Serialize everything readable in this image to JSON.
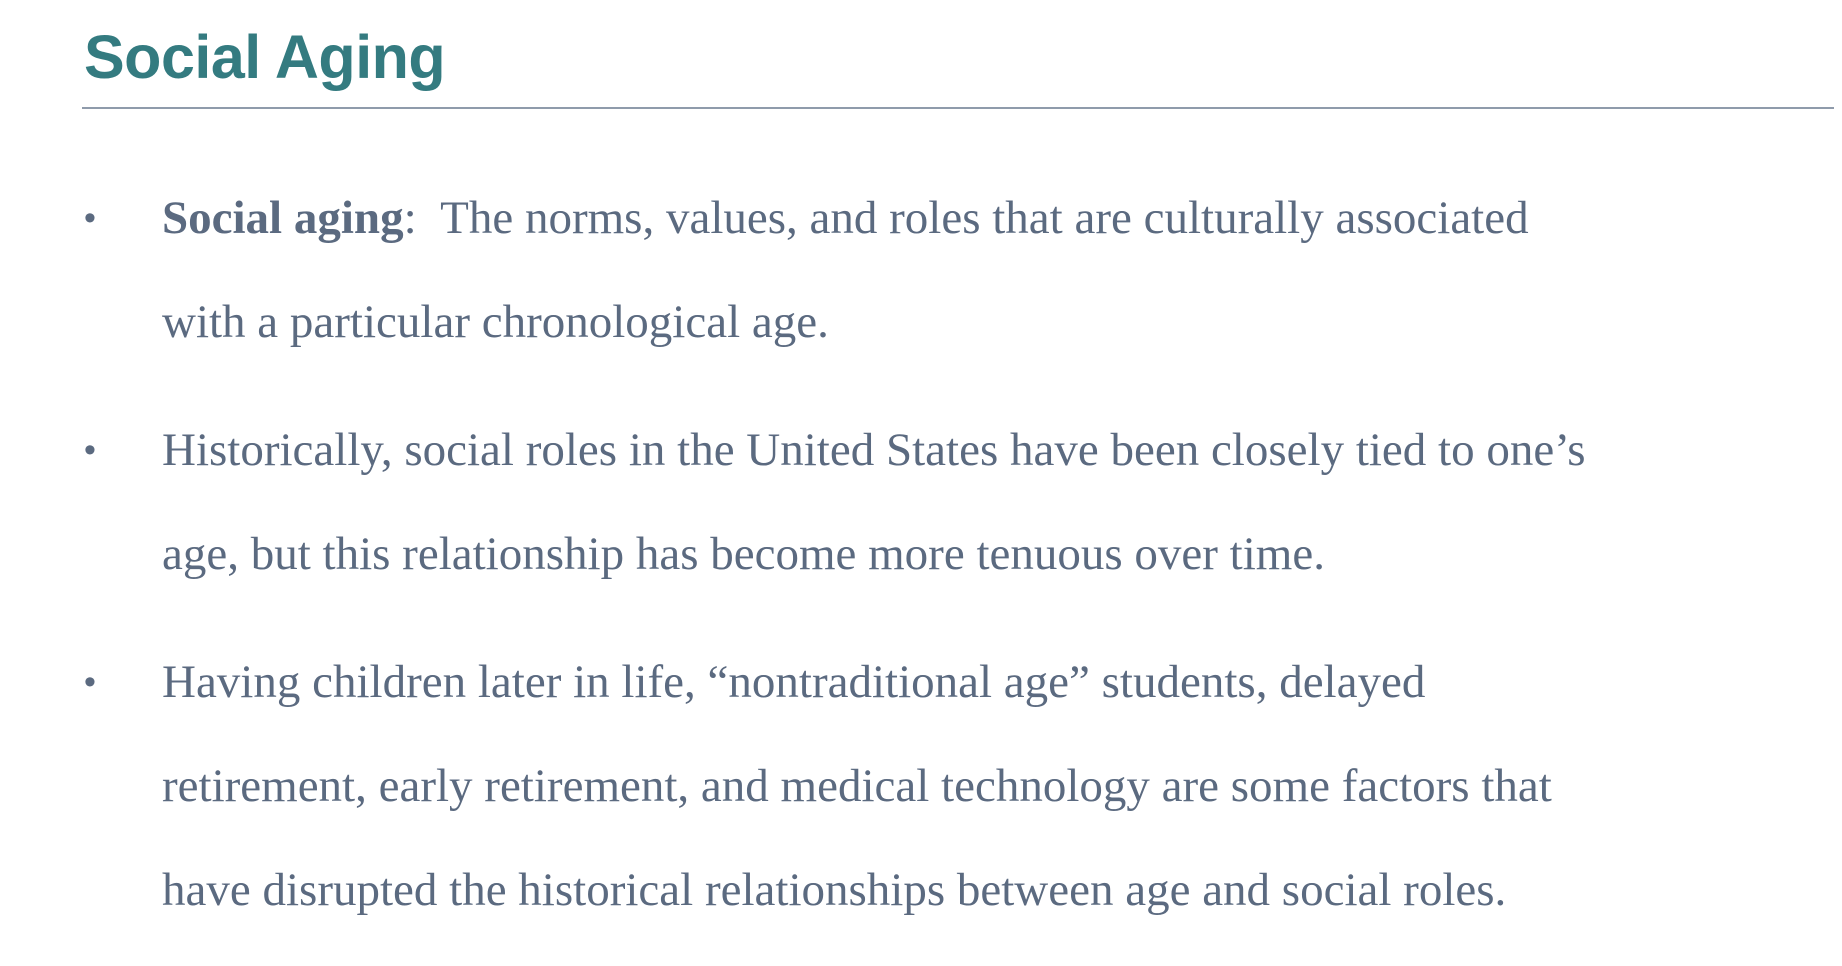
{
  "slide": {
    "title": "Social Aging",
    "colors": {
      "title": "#347b80",
      "body_text": "#5b6a80",
      "rule": "#8f9bab",
      "background": "#ffffff"
    },
    "bullet_symbol": "•",
    "bullets": [
      {
        "term": "Social aging",
        "term_suffix": ":",
        "lines": [
          "The norms, values, and roles that are culturally associated",
          "with a particular chronological age."
        ]
      },
      {
        "lines": [
          "Historically, social roles in the United States have been closely tied to one’s",
          "age, but this relationship has become more tenuous over time."
        ]
      },
      {
        "lines": [
          "Having children later in life, “nontraditional age” students, delayed",
          "retirement, early retirement, and medical technology are some factors that",
          "have disrupted the historical relationships between age and social roles."
        ]
      }
    ]
  }
}
